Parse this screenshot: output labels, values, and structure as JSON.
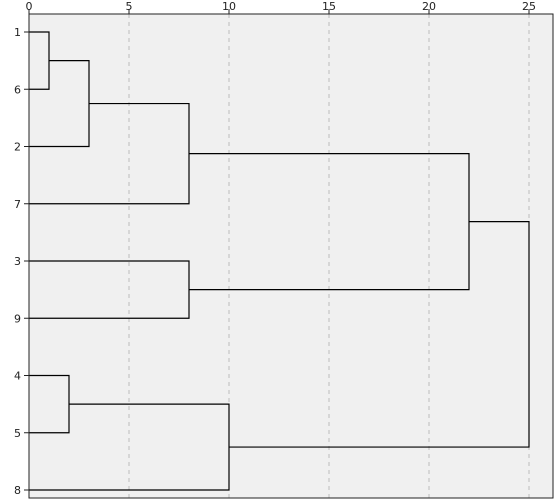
{
  "chart_data": {
    "type": "dendrogram",
    "title": "",
    "xlabel": "",
    "ylabel": "",
    "xlim": [
      0,
      25
    ],
    "x_ticks": [
      "0",
      "5",
      "10",
      "15",
      "20",
      "25"
    ],
    "x_tick_values": [
      0,
      5,
      10,
      15,
      20,
      25
    ],
    "grid": true,
    "grid_style": "dashed vertical",
    "leaves": [
      "1",
      "6",
      "2",
      "7",
      "3",
      "9",
      "4",
      "5",
      "8"
    ],
    "merges": [
      {
        "left": "1",
        "right": "6",
        "height": 1
      },
      {
        "left": "1+6",
        "right": "2",
        "height": 3
      },
      {
        "left": "1+6+2",
        "right": "7",
        "height": 8
      },
      {
        "left": "3",
        "right": "9",
        "height": 8
      },
      {
        "left": "1+6+2+7",
        "right": "3+9",
        "height": 22
      },
      {
        "left": "4",
        "right": "5",
        "height": 2
      },
      {
        "left": "4+5",
        "right": "8",
        "height": 10
      },
      {
        "left": "1+6+2+7+3+9",
        "right": "4+5+8",
        "height": 25
      }
    ],
    "colors": {
      "plot_background": "#f0f0f0",
      "line": "#000000",
      "leaf_stub": "#555555",
      "grid": "#bdbdbd",
      "border": "#222222"
    }
  }
}
